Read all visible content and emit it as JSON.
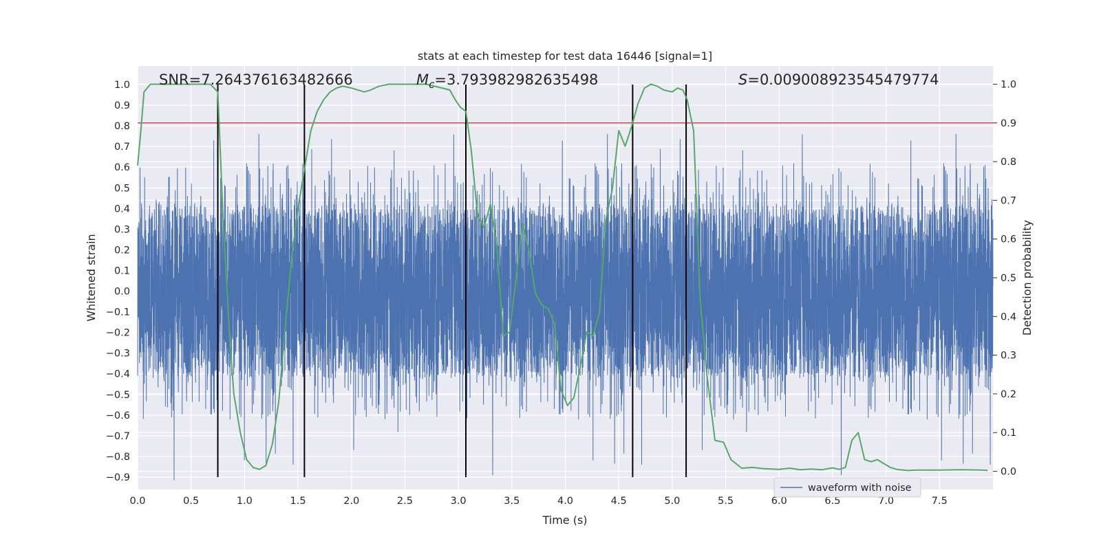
{
  "chart_data": {
    "type": "line",
    "title": "stats at each timestep for test data 16446 [signal=1]",
    "xlabel": "Time (s)",
    "ylabel": "Whitened strain",
    "y2label": "Detection probability",
    "xlim": [
      0,
      8.0
    ],
    "ylim": [
      -0.96,
      1.09
    ],
    "y2lim": [
      -0.047,
      1.047
    ],
    "xticks": [
      "0.0",
      "0.5",
      "1.0",
      "1.5",
      "2.0",
      "2.5",
      "3.0",
      "3.5",
      "4.0",
      "4.5",
      "5.0",
      "5.5",
      "6.0",
      "6.5",
      "7.0",
      "7.5"
    ],
    "yticks": [
      "1.0",
      "0.9",
      "0.8",
      "0.7",
      "0.6",
      "0.5",
      "0.4",
      "0.3",
      "0.2",
      "0.1",
      "0.0",
      "−0.1",
      "−0.2",
      "−0.3",
      "−0.4",
      "−0.5",
      "−0.6",
      "−0.7",
      "−0.8",
      "−0.9"
    ],
    "y2ticks": [
      "1.0",
      "0.9",
      "0.8",
      "0.7",
      "0.6",
      "0.5",
      "0.4",
      "0.3",
      "0.2",
      "0.1",
      "0.0"
    ],
    "grid": true,
    "legend_position": "bottom-right",
    "annotations": {
      "snr_label": "SNR=7.264376163482666",
      "mc_prefix": "M",
      "mc_sub": "c",
      "mc_value": "=3.793982982635498",
      "s_prefix": "S",
      "s_value": "=0.009008923545479774"
    },
    "threshold": {
      "value": 0.9,
      "axis": "y2",
      "color": "#c44e52"
    },
    "vertical_lines": [
      0.75,
      1.56,
      3.07,
      4.63,
      5.13
    ],
    "vertical_line_ymin": -0.9,
    "vertical_line_ymax": 1.0,
    "series": [
      {
        "name": "waveform with noise",
        "color": "#4c72b0",
        "kind": "strain",
        "x_range": [
          0,
          8.0
        ],
        "core_amplitude": 0.42,
        "spike_amplitude": 0.62,
        "samples": 8192
      },
      {
        "color": "#55a868",
        "axis": "y2",
        "x": [
          0.0,
          0.03,
          0.06,
          0.12,
          0.2,
          0.3,
          0.4,
          0.5,
          0.6,
          0.68,
          0.75,
          0.8,
          0.86,
          0.9,
          0.96,
          1.02,
          1.08,
          1.14,
          1.2,
          1.26,
          1.32,
          1.38,
          1.44,
          1.5,
          1.56,
          1.62,
          1.68,
          1.74,
          1.8,
          1.86,
          1.92,
          2.0,
          2.06,
          2.12,
          2.18,
          2.26,
          2.35,
          2.5,
          2.7,
          2.85,
          2.92,
          2.97,
          3.02,
          3.07,
          3.12,
          3.18,
          3.24,
          3.3,
          3.36,
          3.42,
          3.48,
          3.54,
          3.6,
          3.66,
          3.72,
          3.78,
          3.84,
          3.9,
          3.96,
          4.02,
          4.08,
          4.14,
          4.2,
          4.26,
          4.32,
          4.38,
          4.44,
          4.5,
          4.56,
          4.62,
          4.68,
          4.74,
          4.8,
          4.86,
          4.92,
          5.0,
          5.05,
          5.1,
          5.14,
          5.2,
          5.26,
          5.32,
          5.4,
          5.48,
          5.55,
          5.65,
          5.75,
          5.85,
          6.0,
          6.1,
          6.2,
          6.3,
          6.4,
          6.5,
          6.56,
          6.62,
          6.68,
          6.74,
          6.8,
          6.86,
          6.92,
          6.98,
          7.04,
          7.1,
          7.2,
          7.3,
          7.5,
          7.7,
          7.9,
          7.95
        ],
        "y": [
          0.79,
          0.88,
          0.98,
          1.0,
          1.0,
          1.0,
          1.0,
          1.0,
          1.0,
          1.0,
          0.98,
          0.65,
          0.35,
          0.2,
          0.1,
          0.03,
          0.01,
          0.005,
          0.015,
          0.07,
          0.18,
          0.37,
          0.55,
          0.68,
          0.78,
          0.88,
          0.93,
          0.96,
          0.98,
          0.99,
          0.995,
          0.99,
          0.985,
          0.98,
          0.985,
          0.995,
          1.0,
          1.0,
          1.0,
          0.99,
          0.985,
          0.96,
          0.94,
          0.93,
          0.83,
          0.66,
          0.63,
          0.69,
          0.58,
          0.35,
          0.36,
          0.5,
          0.64,
          0.57,
          0.46,
          0.43,
          0.42,
          0.38,
          0.21,
          0.17,
          0.19,
          0.27,
          0.36,
          0.35,
          0.41,
          0.65,
          0.73,
          0.88,
          0.84,
          0.89,
          0.95,
          0.99,
          1.0,
          0.995,
          0.985,
          0.98,
          0.99,
          0.985,
          0.96,
          0.88,
          0.45,
          0.26,
          0.08,
          0.075,
          0.03,
          0.008,
          0.01,
          0.007,
          0.005,
          0.008,
          0.004,
          0.006,
          0.004,
          0.009,
          0.005,
          0.01,
          0.08,
          0.1,
          0.03,
          0.025,
          0.03,
          0.02,
          0.01,
          0.005,
          0.002,
          0.003,
          0.003,
          0.004,
          0.003,
          0.002
        ]
      }
    ]
  }
}
